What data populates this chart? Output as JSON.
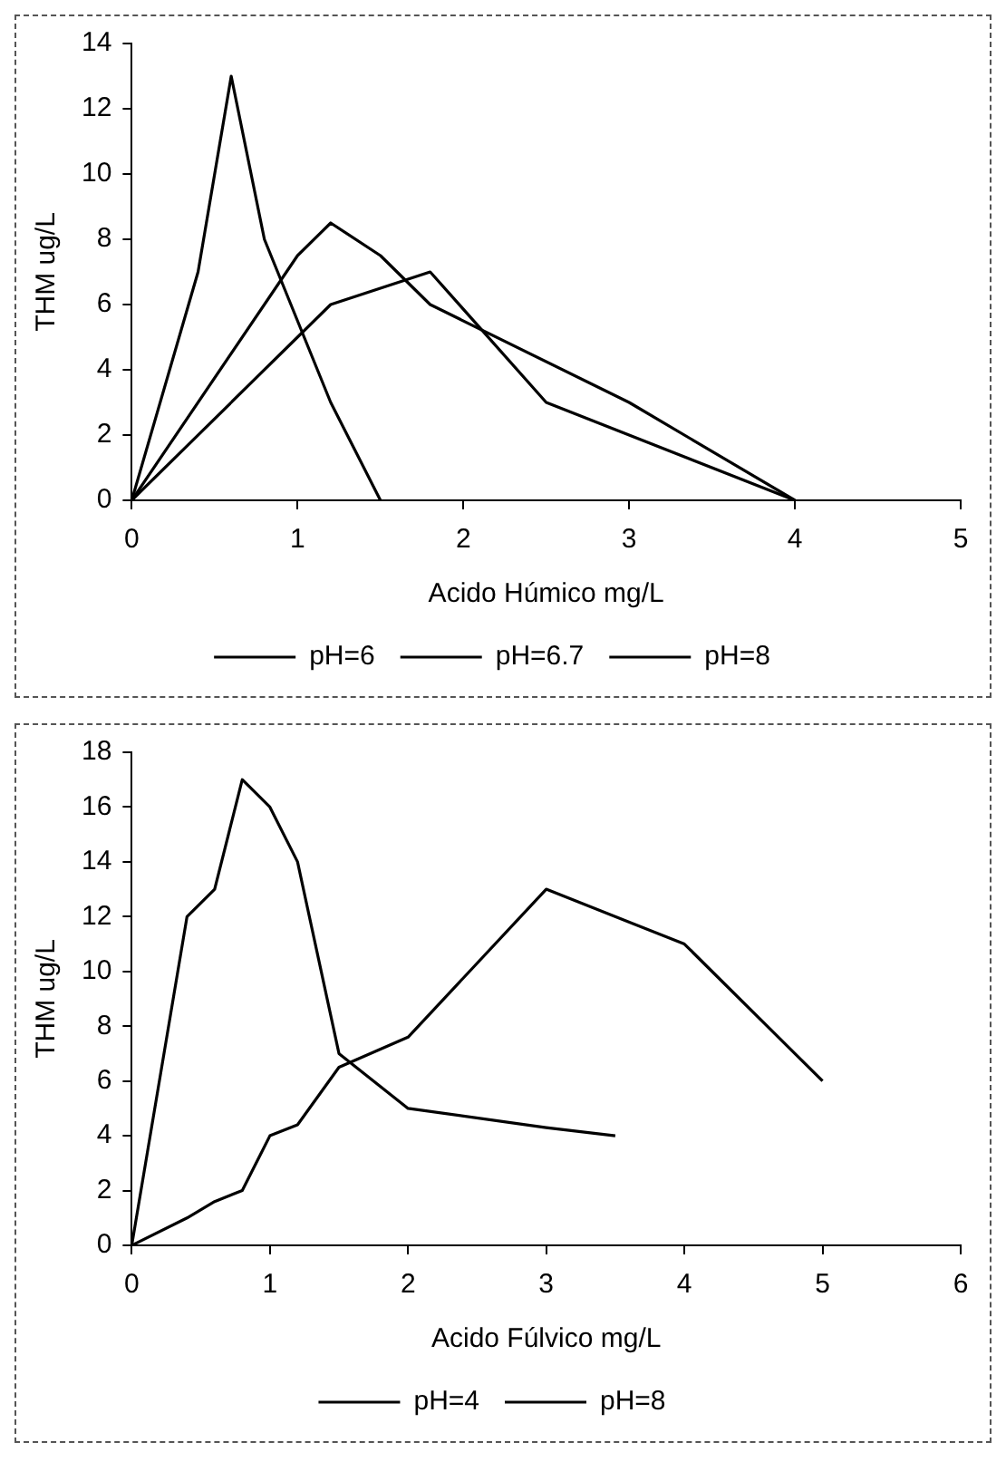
{
  "chart_data": [
    {
      "type": "line",
      "xlabel": "Acido Húmico mg/L",
      "ylabel": "THM ug/L",
      "xlim": [
        0,
        5
      ],
      "xticks": [
        0,
        1,
        2,
        3,
        4,
        5
      ],
      "ylim": [
        0,
        14
      ],
      "yticks": [
        0,
        2,
        4,
        6,
        8,
        10,
        12,
        14
      ],
      "grid": false,
      "legend": "bottom",
      "marker": "none",
      "line_style": "solid",
      "series": [
        {
          "name": "pH=6",
          "color": "#000000",
          "x": [
            0,
            0.4,
            0.6,
            0.8,
            1.2,
            1.5
          ],
          "values": [
            0,
            7,
            13,
            8,
            3,
            0
          ]
        },
        {
          "name": "pH=6.7",
          "color": "#000000",
          "x": [
            0,
            1,
            1.2,
            1.5,
            1.8,
            3,
            4
          ],
          "values": [
            0,
            7.5,
            8.5,
            7.5,
            6,
            3,
            0
          ]
        },
        {
          "name": "pH=8",
          "color": "#000000",
          "x": [
            0,
            1.2,
            1.8,
            2.5,
            4
          ],
          "values": [
            0,
            6,
            7,
            3,
            0
          ]
        }
      ]
    },
    {
      "type": "line",
      "xlabel": "Acido Fúlvico mg/L",
      "ylabel": "THM ug/L",
      "xlim": [
        0,
        6
      ],
      "xticks": [
        0,
        1,
        2,
        3,
        4,
        5,
        6
      ],
      "ylim": [
        0,
        18
      ],
      "yticks": [
        0,
        2,
        4,
        6,
        8,
        10,
        12,
        14,
        16,
        18
      ],
      "grid": false,
      "legend": "bottom",
      "marker": "none",
      "line_style": "solid",
      "series": [
        {
          "name": "pH=4",
          "color": "#000000",
          "x": [
            0,
            0.4,
            0.6,
            0.8,
            1,
            1.2,
            1.5,
            2,
            3,
            3.5
          ],
          "values": [
            0,
            12,
            13,
            17,
            16,
            14,
            7,
            5,
            4.3,
            4
          ]
        },
        {
          "name": "pH=8",
          "color": "#000000",
          "x": [
            0,
            0.4,
            0.6,
            0.8,
            1,
            1.2,
            1.5,
            2,
            3,
            4,
            5
          ],
          "values": [
            0,
            1,
            1.6,
            2,
            4,
            4.4,
            6.5,
            7.6,
            13,
            11,
            6
          ]
        }
      ]
    }
  ]
}
